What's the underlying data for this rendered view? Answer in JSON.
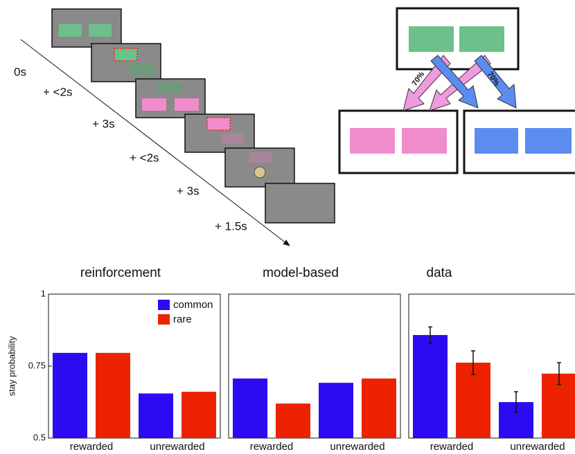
{
  "diagram": {
    "timeline": [
      "0s",
      "+ <2s",
      "+ 3s",
      "+ <2s",
      "+ 3s",
      "+ 1.5s"
    ],
    "transitions": [
      "70%",
      "70%"
    ]
  },
  "chart_data": [
    {
      "type": "bar",
      "title": "reinforcement",
      "ylabel": "stay probability",
      "categories": [
        "rewarded",
        "unrewarded"
      ],
      "series": [
        {
          "name": "common",
          "color": "#2b0cf2",
          "values": [
            0.796,
            0.655
          ]
        },
        {
          "name": "rare",
          "color": "#ec2200",
          "values": [
            0.796,
            0.661
          ]
        }
      ],
      "ylim": [
        0.5,
        1
      ],
      "yticks": [
        0.5,
        0.75,
        1
      ],
      "legend": "upper right"
    },
    {
      "type": "bar",
      "title": "model-based",
      "categories": [
        "rewarded",
        "unrewarded"
      ],
      "series": [
        {
          "color": "#2b0cf2",
          "values": [
            0.707,
            0.692
          ]
        },
        {
          "color": "#ec2200",
          "values": [
            0.62,
            0.707
          ]
        }
      ],
      "ylim": [
        0.5,
        1
      ]
    },
    {
      "type": "bar",
      "title": "data",
      "categories": [
        "rewarded",
        "unrewarded"
      ],
      "series": [
        {
          "color": "#2b0cf2",
          "values": [
            0.858,
            0.625
          ],
          "errors": [
            0.028,
            0.036
          ]
        },
        {
          "color": "#ec2200",
          "values": [
            0.762,
            0.724
          ],
          "errors": [
            0.041,
            0.038
          ]
        }
      ],
      "ylim": [
        0.5,
        1
      ]
    }
  ]
}
